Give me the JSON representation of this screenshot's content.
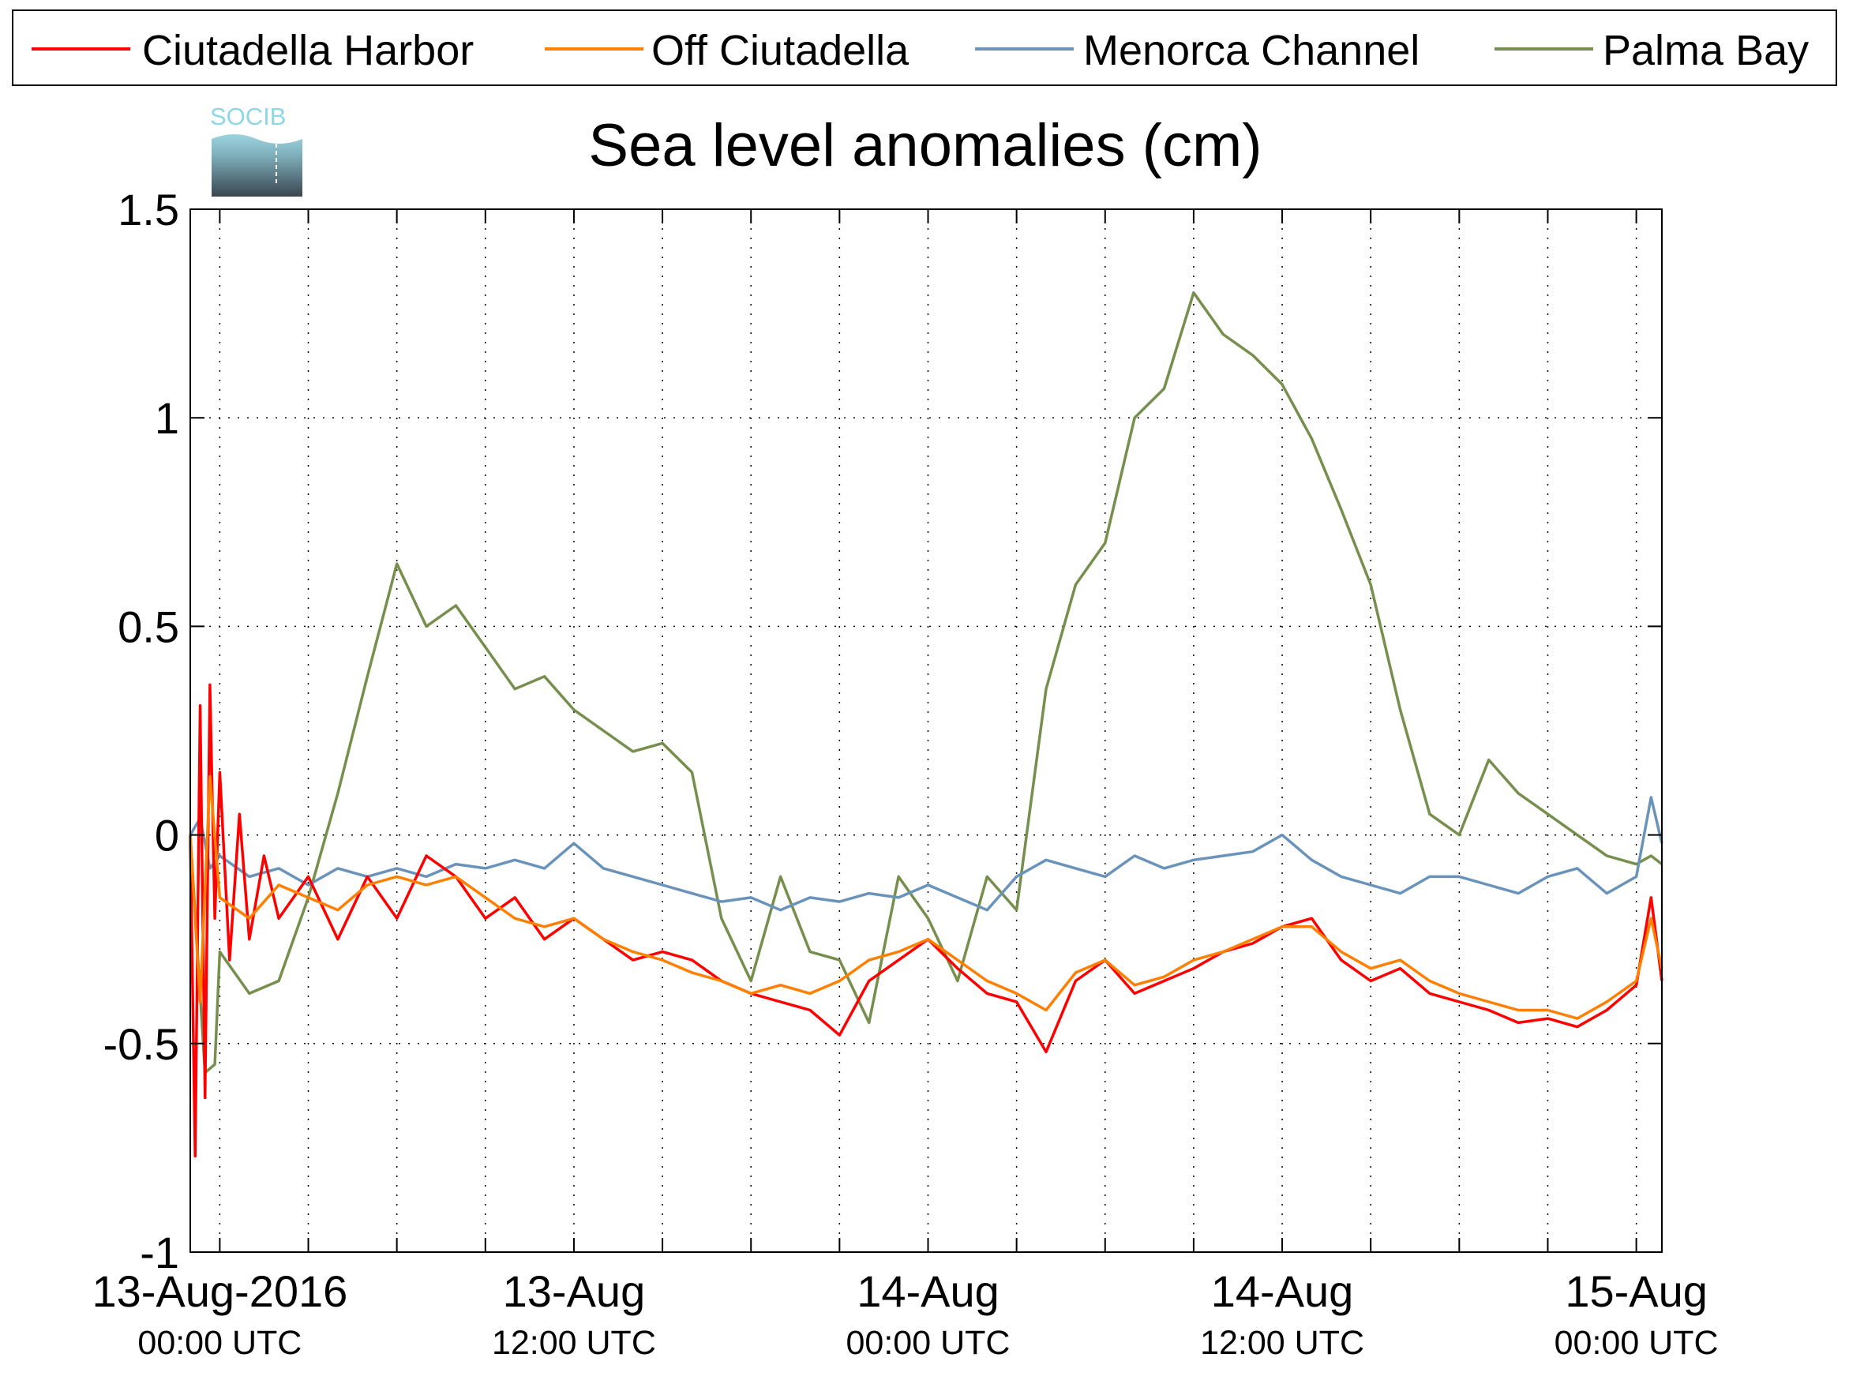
{
  "chart_data": {
    "type": "line",
    "title": "Sea level anomalies (cm)",
    "xlabel": "",
    "ylabel": "",
    "ylim": [
      -1,
      1.5
    ],
    "xlim": [
      "2016-08-12 23:00 UTC",
      "2016-08-15 00:52 UTC"
    ],
    "yticks": [
      {
        "value": 1.5,
        "label": "1.5"
      },
      {
        "value": 1,
        "label": "1"
      },
      {
        "value": 0.5,
        "label": "0.5"
      },
      {
        "value": 0,
        "label": "0"
      },
      {
        "value": -0.5,
        "label": "-0.5"
      },
      {
        "value": -1,
        "label": "-1"
      }
    ],
    "xticks": [
      {
        "x": "2016-08-13 00:00",
        "label": "13-Aug-2016",
        "sublabel": "00:00 UTC"
      },
      {
        "x": "2016-08-13 12:00",
        "label": "13-Aug",
        "sublabel": "12:00 UTC"
      },
      {
        "x": "2016-08-14 00:00",
        "label": "14-Aug",
        "sublabel": "00:00 UTC"
      },
      {
        "x": "2016-08-14 12:00",
        "label": "14-Aug",
        "sublabel": "12:00 UTC"
      },
      {
        "x": "2016-08-15 00:00",
        "label": "15-Aug",
        "sublabel": "00:00 UTC"
      }
    ],
    "minor_xticks": [
      "2016-08-13 03:00",
      "2016-08-13 06:00",
      "2016-08-13 09:00",
      "2016-08-13 15:00",
      "2016-08-13 18:00",
      "2016-08-13 21:00",
      "2016-08-14 03:00",
      "2016-08-14 06:00",
      "2016-08-14 09:00",
      "2016-08-14 15:00",
      "2016-08-14 18:00",
      "2016-08-14 21:00"
    ],
    "grid": true,
    "legend_position": "top",
    "logo_text": "SOCIB",
    "series": [
      {
        "name": "Ciutadella Harbor",
        "color": "#ff0000",
        "x": [
          "2016-08-12 23:00",
          "2016-08-12 23:10",
          "2016-08-12 23:20",
          "2016-08-12 23:30",
          "2016-08-12 23:40",
          "2016-08-12 23:50",
          "2016-08-13 00:00",
          "2016-08-13 00:20",
          "2016-08-13 00:40",
          "2016-08-13 01:00",
          "2016-08-13 01:30",
          "2016-08-13 02:00",
          "2016-08-13 03:00",
          "2016-08-13 04:00",
          "2016-08-13 05:00",
          "2016-08-13 06:00",
          "2016-08-13 07:00",
          "2016-08-13 08:00",
          "2016-08-13 09:00",
          "2016-08-13 10:00",
          "2016-08-13 11:00",
          "2016-08-13 12:00",
          "2016-08-13 13:00",
          "2016-08-13 14:00",
          "2016-08-13 15:00",
          "2016-08-13 16:00",
          "2016-08-13 17:00",
          "2016-08-13 18:00",
          "2016-08-13 19:00",
          "2016-08-13 20:00",
          "2016-08-13 21:00",
          "2016-08-13 22:00",
          "2016-08-13 23:00",
          "2016-08-14 00:00",
          "2016-08-14 01:00",
          "2016-08-14 02:00",
          "2016-08-14 03:00",
          "2016-08-14 04:00",
          "2016-08-14 05:00",
          "2016-08-14 06:00",
          "2016-08-14 07:00",
          "2016-08-14 08:00",
          "2016-08-14 09:00",
          "2016-08-14 10:00",
          "2016-08-14 11:00",
          "2016-08-14 12:00",
          "2016-08-14 13:00",
          "2016-08-14 14:00",
          "2016-08-14 15:00",
          "2016-08-14 16:00",
          "2016-08-14 17:00",
          "2016-08-14 18:00",
          "2016-08-14 19:00",
          "2016-08-14 20:00",
          "2016-08-14 21:00",
          "2016-08-14 22:00",
          "2016-08-14 23:00",
          "2016-08-15 00:00",
          "2016-08-15 00:30",
          "2016-08-15 00:52"
        ],
        "values": [
          0.0,
          -0.77,
          0.31,
          -0.63,
          0.36,
          -0.2,
          0.15,
          -0.3,
          0.05,
          -0.25,
          -0.05,
          -0.2,
          -0.1,
          -0.25,
          -0.1,
          -0.2,
          -0.05,
          -0.1,
          -0.2,
          -0.15,
          -0.25,
          -0.2,
          -0.25,
          -0.3,
          -0.28,
          -0.3,
          -0.35,
          -0.38,
          -0.4,
          -0.42,
          -0.48,
          -0.35,
          -0.3,
          -0.25,
          -0.32,
          -0.38,
          -0.4,
          -0.52,
          -0.35,
          -0.3,
          -0.38,
          -0.35,
          -0.32,
          -0.28,
          -0.26,
          -0.22,
          -0.2,
          -0.3,
          -0.35,
          -0.32,
          -0.38,
          -0.4,
          -0.42,
          -0.45,
          -0.44,
          -0.46,
          -0.42,
          -0.36,
          -0.15,
          -0.35
        ]
      },
      {
        "name": "Off Ciutadella",
        "color": "#ff8000",
        "x": [
          "2016-08-12 23:00",
          "2016-08-12 23:20",
          "2016-08-12 23:40",
          "2016-08-13 00:00",
          "2016-08-13 01:00",
          "2016-08-13 02:00",
          "2016-08-13 03:00",
          "2016-08-13 04:00",
          "2016-08-13 05:00",
          "2016-08-13 06:00",
          "2016-08-13 07:00",
          "2016-08-13 08:00",
          "2016-08-13 09:00",
          "2016-08-13 10:00",
          "2016-08-13 11:00",
          "2016-08-13 12:00",
          "2016-08-13 13:00",
          "2016-08-13 14:00",
          "2016-08-13 15:00",
          "2016-08-13 16:00",
          "2016-08-13 17:00",
          "2016-08-13 18:00",
          "2016-08-13 19:00",
          "2016-08-13 20:00",
          "2016-08-13 21:00",
          "2016-08-13 22:00",
          "2016-08-13 23:00",
          "2016-08-14 00:00",
          "2016-08-14 01:00",
          "2016-08-14 02:00",
          "2016-08-14 03:00",
          "2016-08-14 04:00",
          "2016-08-14 05:00",
          "2016-08-14 06:00",
          "2016-08-14 07:00",
          "2016-08-14 08:00",
          "2016-08-14 09:00",
          "2016-08-14 10:00",
          "2016-08-14 11:00",
          "2016-08-14 12:00",
          "2016-08-14 13:00",
          "2016-08-14 14:00",
          "2016-08-14 15:00",
          "2016-08-14 16:00",
          "2016-08-14 17:00",
          "2016-08-14 18:00",
          "2016-08-14 19:00",
          "2016-08-14 20:00",
          "2016-08-14 21:00",
          "2016-08-14 22:00",
          "2016-08-14 23:00",
          "2016-08-15 00:00",
          "2016-08-15 00:30",
          "2016-08-15 00:52"
        ],
        "values": [
          0.0,
          -0.4,
          0.14,
          -0.15,
          -0.2,
          -0.12,
          -0.15,
          -0.18,
          -0.12,
          -0.1,
          -0.12,
          -0.1,
          -0.15,
          -0.2,
          -0.22,
          -0.2,
          -0.25,
          -0.28,
          -0.3,
          -0.33,
          -0.35,
          -0.38,
          -0.36,
          -0.38,
          -0.35,
          -0.3,
          -0.28,
          -0.25,
          -0.3,
          -0.35,
          -0.38,
          -0.42,
          -0.33,
          -0.3,
          -0.36,
          -0.34,
          -0.3,
          -0.28,
          -0.25,
          -0.22,
          -0.22,
          -0.28,
          -0.32,
          -0.3,
          -0.35,
          -0.38,
          -0.4,
          -0.42,
          -0.42,
          -0.44,
          -0.4,
          -0.35,
          -0.2,
          -0.32
        ]
      },
      {
        "name": "Menorca Channel",
        "color": "#6a93bb",
        "x": [
          "2016-08-12 23:00",
          "2016-08-12 23:20",
          "2016-08-12 23:40",
          "2016-08-13 00:00",
          "2016-08-13 01:00",
          "2016-08-13 02:00",
          "2016-08-13 03:00",
          "2016-08-13 04:00",
          "2016-08-13 05:00",
          "2016-08-13 06:00",
          "2016-08-13 07:00",
          "2016-08-13 08:00",
          "2016-08-13 09:00",
          "2016-08-13 10:00",
          "2016-08-13 11:00",
          "2016-08-13 12:00",
          "2016-08-13 13:00",
          "2016-08-13 14:00",
          "2016-08-13 15:00",
          "2016-08-13 16:00",
          "2016-08-13 17:00",
          "2016-08-13 18:00",
          "2016-08-13 19:00",
          "2016-08-13 20:00",
          "2016-08-13 21:00",
          "2016-08-13 22:00",
          "2016-08-13 23:00",
          "2016-08-14 00:00",
          "2016-08-14 01:00",
          "2016-08-14 02:00",
          "2016-08-14 03:00",
          "2016-08-14 04:00",
          "2016-08-14 05:00",
          "2016-08-14 06:00",
          "2016-08-14 07:00",
          "2016-08-14 08:00",
          "2016-08-14 09:00",
          "2016-08-14 10:00",
          "2016-08-14 11:00",
          "2016-08-14 12:00",
          "2016-08-14 13:00",
          "2016-08-14 14:00",
          "2016-08-14 15:00",
          "2016-08-14 16:00",
          "2016-08-14 17:00",
          "2016-08-14 18:00",
          "2016-08-14 19:00",
          "2016-08-14 20:00",
          "2016-08-14 21:00",
          "2016-08-14 22:00",
          "2016-08-14 23:00",
          "2016-08-15 00:00",
          "2016-08-15 00:30",
          "2016-08-15 00:52"
        ],
        "values": [
          0.0,
          0.04,
          -0.08,
          -0.05,
          -0.1,
          -0.08,
          -0.12,
          -0.08,
          -0.1,
          -0.08,
          -0.1,
          -0.07,
          -0.08,
          -0.06,
          -0.08,
          -0.02,
          -0.08,
          -0.1,
          -0.12,
          -0.14,
          -0.16,
          -0.15,
          -0.18,
          -0.15,
          -0.16,
          -0.14,
          -0.15,
          -0.12,
          -0.15,
          -0.18,
          -0.1,
          -0.06,
          -0.08,
          -0.1,
          -0.05,
          -0.08,
          -0.06,
          -0.05,
          -0.04,
          0.0,
          -0.06,
          -0.1,
          -0.12,
          -0.14,
          -0.1,
          -0.1,
          -0.12,
          -0.14,
          -0.1,
          -0.08,
          -0.14,
          -0.1,
          0.09,
          -0.02
        ]
      },
      {
        "name": "Palma Bay",
        "color": "#768f4c",
        "x": [
          "2016-08-12 23:00",
          "2016-08-12 23:30",
          "2016-08-12 23:50",
          "2016-08-13 00:00",
          "2016-08-13 01:00",
          "2016-08-13 02:00",
          "2016-08-13 03:00",
          "2016-08-13 04:00",
          "2016-08-13 05:00",
          "2016-08-13 06:00",
          "2016-08-13 07:00",
          "2016-08-13 08:00",
          "2016-08-13 09:00",
          "2016-08-13 10:00",
          "2016-08-13 11:00",
          "2016-08-13 12:00",
          "2016-08-13 13:00",
          "2016-08-13 14:00",
          "2016-08-13 15:00",
          "2016-08-13 16:00",
          "2016-08-13 17:00",
          "2016-08-13 18:00",
          "2016-08-13 19:00",
          "2016-08-13 20:00",
          "2016-08-13 21:00",
          "2016-08-13 22:00",
          "2016-08-13 23:00",
          "2016-08-14 00:00",
          "2016-08-14 01:00",
          "2016-08-14 02:00",
          "2016-08-14 03:00",
          "2016-08-14 04:00",
          "2016-08-14 05:00",
          "2016-08-14 06:00",
          "2016-08-14 07:00",
          "2016-08-14 08:00",
          "2016-08-14 09:00",
          "2016-08-14 10:00",
          "2016-08-14 11:00",
          "2016-08-14 12:00",
          "2016-08-14 13:00",
          "2016-08-14 14:00",
          "2016-08-14 15:00",
          "2016-08-14 16:00",
          "2016-08-14 17:00",
          "2016-08-14 18:00",
          "2016-08-14 19:00",
          "2016-08-14 20:00",
          "2016-08-14 21:00",
          "2016-08-14 22:00",
          "2016-08-14 23:00",
          "2016-08-15 00:00",
          "2016-08-15 00:30",
          "2016-08-15 00:52"
        ],
        "values": [
          0.0,
          -0.57,
          -0.55,
          -0.28,
          -0.38,
          -0.35,
          -0.15,
          0.1,
          0.38,
          0.65,
          0.5,
          0.55,
          0.45,
          0.35,
          0.38,
          0.3,
          0.25,
          0.2,
          0.22,
          0.15,
          -0.2,
          -0.35,
          -0.1,
          -0.28,
          -0.3,
          -0.45,
          -0.1,
          -0.2,
          -0.35,
          -0.1,
          -0.18,
          0.35,
          0.6,
          0.7,
          1.0,
          1.07,
          1.3,
          1.2,
          1.15,
          1.08,
          0.95,
          0.78,
          0.6,
          0.3,
          0.05,
          0.0,
          0.18,
          0.1,
          0.05,
          0.0,
          -0.05,
          -0.07,
          -0.05,
          -0.07
        ]
      }
    ]
  }
}
